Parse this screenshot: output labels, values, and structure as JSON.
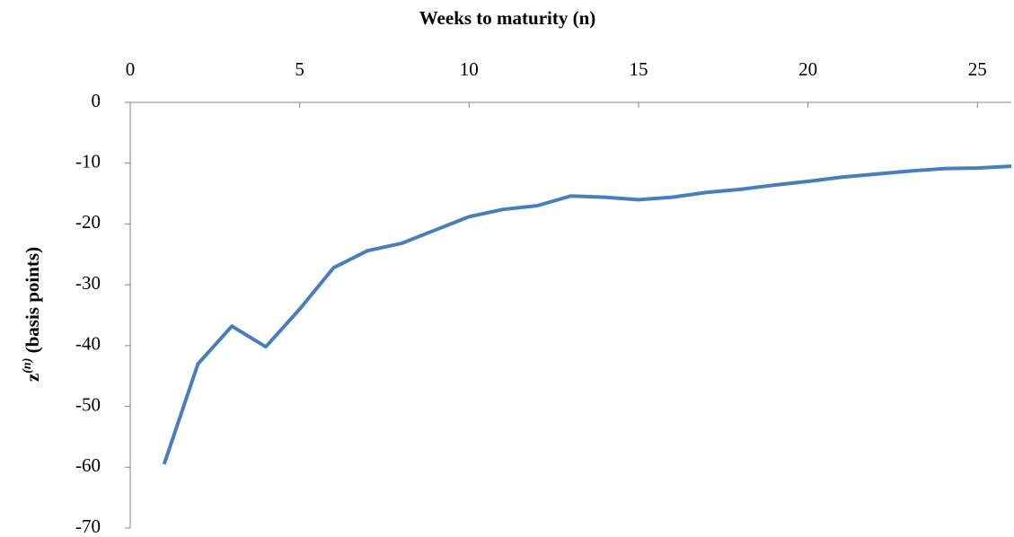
{
  "chart_data": {
    "type": "line",
    "xlabel": "Weeks to maturity (n)",
    "ylabel": {
      "base": "z",
      "sup": "(n)",
      "rest": " (basis points)"
    },
    "x": [
      1,
      2,
      3,
      4,
      5,
      6,
      7,
      8,
      9,
      10,
      11,
      12,
      13,
      14,
      15,
      16,
      17,
      18,
      19,
      20,
      21,
      22,
      23,
      24,
      25,
      26
    ],
    "series": [
      {
        "color": "#4a7ebb",
        "values": [
          -59.5,
          -43,
          -36.8,
          -40.2,
          -34,
          -27.2,
          -24.4,
          -23.2,
          -21,
          -18.8,
          -17.6,
          -17,
          -15.4,
          -15.6,
          -16,
          -15.6,
          -14.8,
          -14.3,
          -13.6,
          -13,
          -12.3,
          -11.8,
          -11.3,
          -10.9,
          -10.8,
          -10.5
        ]
      }
    ],
    "xlim": [
      0,
      26
    ],
    "xticks": [
      0,
      5,
      10,
      15,
      20,
      25
    ],
    "ylim": [
      -70,
      0
    ],
    "yticks": [
      0,
      -10,
      -20,
      -30,
      -40,
      -50,
      -60,
      -70
    ],
    "grid": false
  }
}
